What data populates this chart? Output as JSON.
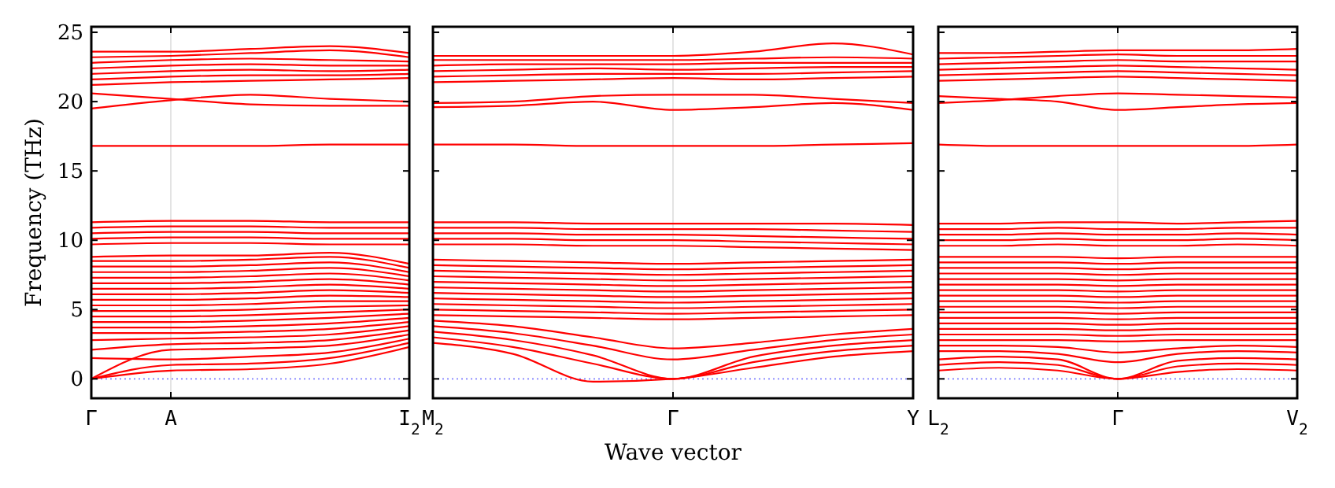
{
  "chart_data": [
    {
      "type": "line",
      "ylabel": "Frequency (THz)",
      "color": "#ff0000",
      "line_style": "solid",
      "categories": [
        "Γ",
        "A",
        null,
        null,
        "I$_{2}$"
      ],
      "ylim": [
        -1.4,
        25.4
      ],
      "yticks": [
        0,
        5,
        10,
        15,
        20,
        25
      ],
      "ref_lines": [
        {
          "axis": "y",
          "value": 0,
          "color": "#8080ff",
          "line_style": "dotted"
        },
        {
          "axis": "x",
          "value": "A",
          "color": "#dddddd",
          "line_style": "solid"
        }
      ],
      "series": [
        {
          "values": [
            0,
            0.6,
            0.7,
            1.1,
            2.3
          ]
        },
        {
          "values": [
            0,
            1.0,
            1.1,
            1.5,
            2.6
          ]
        },
        {
          "values": [
            1.5,
            1.4,
            1.6,
            1.9,
            2.9
          ]
        },
        {
          "values": [
            0,
            2.1,
            2.2,
            2.4,
            3.2
          ]
        },
        {
          "values": [
            2.1,
            2.5,
            2.6,
            2.8,
            3.5
          ]
        },
        {
          "values": [
            2.8,
            2.9,
            3.0,
            3.2,
            3.8
          ]
        },
        {
          "values": [
            3.3,
            3.3,
            3.4,
            3.6,
            4.1
          ]
        },
        {
          "values": [
            3.7,
            3.7,
            3.8,
            4.0,
            4.4
          ]
        },
        {
          "values": [
            4.1,
            4.1,
            4.2,
            4.4,
            4.7
          ]
        },
        {
          "values": [
            4.5,
            4.5,
            4.6,
            4.8,
            5.0
          ]
        },
        {
          "values": [
            4.9,
            4.9,
            5.0,
            5.2,
            5.3
          ]
        },
        {
          "values": [
            5.3,
            5.3,
            5.4,
            5.6,
            5.6
          ]
        },
        {
          "values": [
            5.7,
            5.7,
            5.8,
            6.0,
            5.9
          ]
        },
        {
          "values": [
            6.1,
            6.1,
            6.2,
            6.4,
            6.2
          ]
        },
        {
          "values": [
            6.5,
            6.5,
            6.6,
            6.8,
            6.5
          ]
        },
        {
          "values": [
            6.9,
            6.9,
            7.0,
            7.2,
            6.8
          ]
        },
        {
          "values": [
            7.3,
            7.3,
            7.4,
            7.6,
            7.1
          ]
        },
        {
          "values": [
            7.7,
            7.7,
            7.8,
            8.0,
            7.4
          ]
        },
        {
          "values": [
            8.1,
            8.1,
            8.2,
            8.4,
            7.7
          ]
        },
        {
          "values": [
            8.5,
            8.5,
            8.6,
            8.8,
            8.0
          ]
        },
        {
          "values": [
            8.8,
            8.9,
            8.9,
            9.1,
            8.3
          ]
        },
        {
          "values": [
            9.7,
            9.8,
            9.8,
            9.7,
            9.7
          ]
        },
        {
          "values": [
            10.1,
            10.2,
            10.2,
            10.1,
            10.1
          ]
        },
        {
          "values": [
            10.5,
            10.6,
            10.6,
            10.5,
            10.5
          ]
        },
        {
          "values": [
            10.9,
            11.0,
            11.0,
            10.9,
            10.9
          ]
        },
        {
          "values": [
            11.3,
            11.4,
            11.4,
            11.3,
            11.3
          ]
        },
        {
          "values": [
            16.8,
            16.8,
            16.8,
            16.9,
            16.9
          ]
        },
        {
          "values": [
            19.5,
            20.1,
            20.5,
            20.2,
            20.0
          ]
        },
        {
          "values": [
            20.6,
            20.2,
            19.8,
            19.7,
            19.7
          ]
        },
        {
          "values": [
            21.2,
            21.4,
            21.5,
            21.6,
            21.7
          ]
        },
        {
          "values": [
            21.6,
            21.8,
            21.9,
            21.9,
            22.0
          ]
        },
        {
          "values": [
            22.0,
            22.2,
            22.3,
            22.2,
            22.3
          ]
        },
        {
          "values": [
            22.4,
            22.6,
            22.7,
            22.6,
            22.6
          ]
        },
        {
          "values": [
            22.8,
            23.0,
            23.1,
            23.0,
            22.9
          ]
        },
        {
          "values": [
            23.2,
            23.3,
            23.5,
            23.7,
            23.2
          ]
        },
        {
          "values": [
            23.6,
            23.6,
            23.8,
            24.0,
            23.5
          ]
        }
      ]
    },
    {
      "type": "line",
      "xlabel": "Wave vector",
      "color": "#ff0000",
      "line_style": "solid",
      "tick_labels": "x",
      "categories": [
        "M$_{2}$",
        null,
        null,
        "Γ",
        null,
        null,
        "Y"
      ],
      "ylim": [
        -1.4,
        25.4
      ],
      "yticks": [
        0,
        5,
        10,
        15,
        20,
        25
      ],
      "ref_lines": [
        {
          "axis": "y",
          "value": 0,
          "color": "#8080ff",
          "line_style": "dotted"
        },
        {
          "axis": "x",
          "value": "Γ",
          "color": "#dddddd",
          "line_style": "solid"
        }
      ],
      "series": [
        {
          "values": [
            2.6,
            1.8,
            -0.2,
            0,
            0.8,
            1.6,
            2.0
          ]
        },
        {
          "values": [
            3.0,
            2.3,
            1.1,
            0,
            1.2,
            2.0,
            2.4
          ]
        },
        {
          "values": [
            3.4,
            2.8,
            1.7,
            0,
            1.6,
            2.4,
            2.8
          ]
        },
        {
          "values": [
            3.8,
            3.3,
            2.4,
            1.4,
            2.1,
            2.8,
            3.2
          ]
        },
        {
          "values": [
            4.2,
            3.8,
            3.0,
            2.2,
            2.6,
            3.2,
            3.6
          ]
        },
        {
          "values": [
            4.6,
            4.5,
            4.4,
            4.3,
            4.4,
            4.5,
            4.6
          ]
        },
        {
          "values": [
            5.0,
            4.9,
            4.8,
            4.7,
            4.8,
            4.9,
            5.0
          ]
        },
        {
          "values": [
            5.4,
            5.3,
            5.2,
            5.1,
            5.2,
            5.3,
            5.4
          ]
        },
        {
          "values": [
            5.8,
            5.7,
            5.6,
            5.5,
            5.6,
            5.7,
            5.8
          ]
        },
        {
          "values": [
            6.2,
            6.1,
            6.0,
            5.9,
            6.0,
            6.1,
            6.2
          ]
        },
        {
          "values": [
            6.6,
            6.5,
            6.4,
            6.3,
            6.4,
            6.5,
            6.6
          ]
        },
        {
          "values": [
            7.0,
            6.9,
            6.8,
            6.7,
            6.8,
            6.9,
            7.0
          ]
        },
        {
          "values": [
            7.4,
            7.3,
            7.2,
            7.1,
            7.2,
            7.3,
            7.4
          ]
        },
        {
          "values": [
            7.8,
            7.7,
            7.6,
            7.5,
            7.6,
            7.7,
            7.8
          ]
        },
        {
          "values": [
            8.2,
            8.1,
            8.0,
            7.9,
            8.0,
            8.1,
            8.2
          ]
        },
        {
          "values": [
            8.6,
            8.5,
            8.4,
            8.3,
            8.4,
            8.5,
            8.6
          ]
        },
        {
          "values": [
            9.7,
            9.7,
            9.6,
            9.6,
            9.5,
            9.4,
            9.3
          ]
        },
        {
          "values": [
            10.1,
            10.1,
            10.0,
            10.0,
            9.9,
            9.8,
            9.7
          ]
        },
        {
          "values": [
            10.5,
            10.5,
            10.4,
            10.4,
            10.3,
            10.2,
            10.1
          ]
        },
        {
          "values": [
            10.9,
            10.9,
            10.8,
            10.8,
            10.8,
            10.7,
            10.6
          ]
        },
        {
          "values": [
            11.3,
            11.3,
            11.2,
            11.2,
            11.2,
            11.2,
            11.1
          ]
        },
        {
          "values": [
            16.9,
            16.9,
            16.8,
            16.8,
            16.8,
            16.9,
            17.0
          ]
        },
        {
          "values": [
            19.6,
            19.7,
            20.0,
            19.4,
            19.6,
            19.9,
            19.4
          ]
        },
        {
          "values": [
            19.9,
            20.0,
            20.4,
            20.5,
            20.5,
            20.2,
            19.9
          ]
        },
        {
          "values": [
            21.4,
            21.5,
            21.6,
            21.7,
            21.6,
            21.7,
            21.8
          ]
        },
        {
          "values": [
            21.8,
            21.9,
            22.0,
            22.0,
            22.0,
            22.1,
            22.2
          ]
        },
        {
          "values": [
            22.2,
            22.3,
            22.4,
            22.3,
            22.4,
            22.5,
            22.5
          ]
        },
        {
          "values": [
            22.6,
            22.7,
            22.7,
            22.7,
            22.8,
            22.8,
            22.8
          ]
        },
        {
          "values": [
            23.0,
            23.0,
            23.0,
            23.0,
            23.1,
            23.2,
            23.1
          ]
        },
        {
          "values": [
            23.3,
            23.3,
            23.3,
            23.3,
            23.6,
            24.2,
            23.4
          ]
        }
      ]
    },
    {
      "type": "line",
      "color": "#ff0000",
      "line_style": "solid",
      "tick_labels": "x",
      "categories": [
        "L$_{2}$",
        null,
        null,
        "Γ",
        null,
        null,
        "V$_{2}$"
      ],
      "ylim": [
        -1.4,
        25.4
      ],
      "yticks": [
        0,
        5,
        10,
        15,
        20,
        25
      ],
      "ref_lines": [
        {
          "axis": "y",
          "value": 0,
          "color": "#8080ff",
          "line_style": "dotted"
        },
        {
          "axis": "x",
          "value": "Γ",
          "color": "#dddddd",
          "line_style": "solid"
        }
      ],
      "series": [
        {
          "values": [
            0.6,
            0.8,
            0.6,
            0,
            0.5,
            0.7,
            0.6
          ]
        },
        {
          "values": [
            1.0,
            1.2,
            1.0,
            0,
            0.9,
            1.1,
            1.0
          ]
        },
        {
          "values": [
            1.4,
            1.6,
            1.4,
            0,
            1.3,
            1.5,
            1.4
          ]
        },
        {
          "values": [
            2.0,
            2.0,
            1.8,
            1.2,
            1.8,
            2.0,
            1.9
          ]
        },
        {
          "values": [
            2.4,
            2.4,
            2.3,
            1.9,
            2.2,
            2.4,
            2.3
          ]
        },
        {
          "values": [
            2.8,
            2.8,
            2.8,
            2.7,
            2.8,
            2.8,
            2.8
          ]
        },
        {
          "values": [
            3.2,
            3.2,
            3.2,
            3.1,
            3.2,
            3.2,
            3.2
          ]
        },
        {
          "values": [
            3.6,
            3.6,
            3.6,
            3.5,
            3.6,
            3.6,
            3.6
          ]
        },
        {
          "values": [
            4.0,
            4.0,
            4.0,
            3.9,
            4.0,
            4.0,
            4.0
          ]
        },
        {
          "values": [
            4.4,
            4.4,
            4.4,
            4.3,
            4.4,
            4.4,
            4.4
          ]
        },
        {
          "values": [
            4.8,
            4.8,
            4.8,
            4.7,
            4.8,
            4.8,
            4.8
          ]
        },
        {
          "values": [
            5.2,
            5.2,
            5.2,
            5.1,
            5.2,
            5.2,
            5.2
          ]
        },
        {
          "values": [
            5.6,
            5.6,
            5.6,
            5.5,
            5.6,
            5.6,
            5.6
          ]
        },
        {
          "values": [
            6.0,
            6.0,
            6.0,
            5.9,
            6.0,
            6.0,
            6.0
          ]
        },
        {
          "values": [
            6.4,
            6.4,
            6.4,
            6.3,
            6.4,
            6.4,
            6.4
          ]
        },
        {
          "values": [
            6.8,
            6.8,
            6.8,
            6.7,
            6.8,
            6.8,
            6.8
          ]
        },
        {
          "values": [
            7.2,
            7.2,
            7.2,
            7.1,
            7.2,
            7.2,
            7.2
          ]
        },
        {
          "values": [
            7.6,
            7.6,
            7.6,
            7.5,
            7.6,
            7.6,
            7.6
          ]
        },
        {
          "values": [
            8.0,
            8.0,
            8.0,
            7.9,
            8.0,
            8.0,
            8.0
          ]
        },
        {
          "values": [
            8.4,
            8.4,
            8.4,
            8.3,
            8.4,
            8.4,
            8.4
          ]
        },
        {
          "values": [
            8.8,
            8.8,
            8.8,
            8.7,
            8.8,
            8.8,
            8.8
          ]
        },
        {
          "values": [
            9.6,
            9.6,
            9.7,
            9.6,
            9.6,
            9.7,
            9.6
          ]
        },
        {
          "values": [
            10.0,
            10.0,
            10.1,
            10.0,
            10.0,
            10.1,
            10.0
          ]
        },
        {
          "values": [
            10.4,
            10.4,
            10.5,
            10.4,
            10.4,
            10.5,
            10.4
          ]
        },
        {
          "values": [
            10.8,
            10.8,
            10.9,
            10.8,
            10.8,
            10.9,
            10.9
          ]
        },
        {
          "values": [
            11.2,
            11.2,
            11.3,
            11.3,
            11.2,
            11.3,
            11.4
          ]
        },
        {
          "values": [
            16.9,
            16.8,
            16.8,
            16.8,
            16.8,
            16.8,
            16.9
          ]
        },
        {
          "values": [
            20.4,
            20.2,
            20.0,
            19.4,
            19.6,
            19.8,
            19.9
          ]
        },
        {
          "values": [
            19.9,
            20.1,
            20.4,
            20.6,
            20.5,
            20.4,
            20.3
          ]
        },
        {
          "values": [
            21.5,
            21.6,
            21.7,
            21.8,
            21.7,
            21.6,
            21.5
          ]
        },
        {
          "values": [
            21.9,
            22.0,
            22.1,
            22.2,
            22.1,
            22.0,
            21.9
          ]
        },
        {
          "values": [
            22.3,
            22.4,
            22.5,
            22.6,
            22.5,
            22.4,
            22.3
          ]
        },
        {
          "values": [
            22.7,
            22.8,
            22.9,
            23.0,
            22.9,
            22.9,
            22.9
          ]
        },
        {
          "values": [
            23.1,
            23.2,
            23.3,
            23.4,
            23.3,
            23.3,
            23.3
          ]
        },
        {
          "values": [
            23.5,
            23.5,
            23.6,
            23.7,
            23.7,
            23.7,
            23.8
          ]
        }
      ]
    }
  ]
}
